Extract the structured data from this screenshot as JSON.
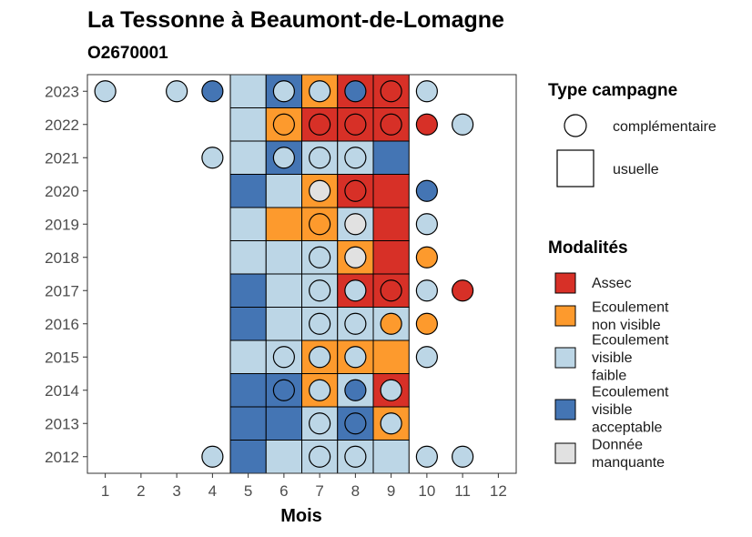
{
  "chart_data": {
    "type": "heatmap",
    "title": "La Tessonne à Beaumont-de-Lomagne",
    "subtitle": "O2670001",
    "xlabel": "Mois",
    "ylabel": "",
    "x_ticks": [
      "1",
      "2",
      "3",
      "4",
      "5",
      "6",
      "7",
      "8",
      "9",
      "10",
      "11",
      "12"
    ],
    "y_ticks": [
      "2012",
      "2013",
      "2014",
      "2015",
      "2016",
      "2017",
      "2018",
      "2019",
      "2020",
      "2021",
      "2022",
      "2023"
    ],
    "colors": {
      "Assec": "#d73027",
      "Ecoulement non visible": "#fd9a2d",
      "Ecoulement visible faible": "#bcd6e6",
      "Ecoulement visible acceptable": "#4475b4",
      "Donnée manquante": "#e1e1e1"
    },
    "usuelle": [
      {
        "year": 2012,
        "month": 5,
        "value": "Ecoulement visible acceptable"
      },
      {
        "year": 2012,
        "month": 6,
        "value": "Ecoulement visible faible"
      },
      {
        "year": 2012,
        "month": 7,
        "value": "Ecoulement visible faible"
      },
      {
        "year": 2012,
        "month": 8,
        "value": "Ecoulement visible faible"
      },
      {
        "year": 2012,
        "month": 9,
        "value": "Ecoulement visible faible"
      },
      {
        "year": 2013,
        "month": 5,
        "value": "Ecoulement visible acceptable"
      },
      {
        "year": 2013,
        "month": 6,
        "value": "Ecoulement visible acceptable"
      },
      {
        "year": 2013,
        "month": 7,
        "value": "Ecoulement visible faible"
      },
      {
        "year": 2013,
        "month": 8,
        "value": "Ecoulement visible acceptable"
      },
      {
        "year": 2013,
        "month": 9,
        "value": "Ecoulement non visible"
      },
      {
        "year": 2014,
        "month": 5,
        "value": "Ecoulement visible acceptable"
      },
      {
        "year": 2014,
        "month": 6,
        "value": "Ecoulement visible acceptable"
      },
      {
        "year": 2014,
        "month": 7,
        "value": "Ecoulement non visible"
      },
      {
        "year": 2014,
        "month": 8,
        "value": "Ecoulement visible faible"
      },
      {
        "year": 2014,
        "month": 9,
        "value": "Assec"
      },
      {
        "year": 2015,
        "month": 5,
        "value": "Ecoulement visible faible"
      },
      {
        "year": 2015,
        "month": 6,
        "value": "Ecoulement visible faible"
      },
      {
        "year": 2015,
        "month": 7,
        "value": "Ecoulement non visible"
      },
      {
        "year": 2015,
        "month": 8,
        "value": "Ecoulement non visible"
      },
      {
        "year": 2015,
        "month": 9,
        "value": "Ecoulement non visible"
      },
      {
        "year": 2016,
        "month": 5,
        "value": "Ecoulement visible acceptable"
      },
      {
        "year": 2016,
        "month": 6,
        "value": "Ecoulement visible faible"
      },
      {
        "year": 2016,
        "month": 7,
        "value": "Ecoulement visible faible"
      },
      {
        "year": 2016,
        "month": 8,
        "value": "Ecoulement visible faible"
      },
      {
        "year": 2016,
        "month": 9,
        "value": "Ecoulement visible faible"
      },
      {
        "year": 2017,
        "month": 5,
        "value": "Ecoulement visible acceptable"
      },
      {
        "year": 2017,
        "month": 6,
        "value": "Ecoulement visible faible"
      },
      {
        "year": 2017,
        "month": 7,
        "value": "Ecoulement visible faible"
      },
      {
        "year": 2017,
        "month": 8,
        "value": "Assec"
      },
      {
        "year": 2017,
        "month": 9,
        "value": "Assec"
      },
      {
        "year": 2018,
        "month": 5,
        "value": "Ecoulement visible faible"
      },
      {
        "year": 2018,
        "month": 6,
        "value": "Ecoulement visible faible"
      },
      {
        "year": 2018,
        "month": 7,
        "value": "Ecoulement visible faible"
      },
      {
        "year": 2018,
        "month": 8,
        "value": "Ecoulement non visible"
      },
      {
        "year": 2018,
        "month": 9,
        "value": "Assec"
      },
      {
        "year": 2019,
        "month": 5,
        "value": "Ecoulement visible faible"
      },
      {
        "year": 2019,
        "month": 6,
        "value": "Ecoulement non visible"
      },
      {
        "year": 2019,
        "month": 7,
        "value": "Ecoulement non visible"
      },
      {
        "year": 2019,
        "month": 8,
        "value": "Ecoulement visible faible"
      },
      {
        "year": 2019,
        "month": 9,
        "value": "Assec"
      },
      {
        "year": 2020,
        "month": 5,
        "value": "Ecoulement visible acceptable"
      },
      {
        "year": 2020,
        "month": 6,
        "value": "Ecoulement visible faible"
      },
      {
        "year": 2020,
        "month": 7,
        "value": "Ecoulement non visible"
      },
      {
        "year": 2020,
        "month": 8,
        "value": "Assec"
      },
      {
        "year": 2020,
        "month": 9,
        "value": "Assec"
      },
      {
        "year": 2021,
        "month": 5,
        "value": "Ecoulement visible faible"
      },
      {
        "year": 2021,
        "month": 6,
        "value": "Ecoulement visible acceptable"
      },
      {
        "year": 2021,
        "month": 7,
        "value": "Ecoulement visible faible"
      },
      {
        "year": 2021,
        "month": 8,
        "value": "Ecoulement visible faible"
      },
      {
        "year": 2021,
        "month": 9,
        "value": "Ecoulement visible acceptable"
      },
      {
        "year": 2022,
        "month": 5,
        "value": "Ecoulement visible faible"
      },
      {
        "year": 2022,
        "month": 6,
        "value": "Ecoulement non visible"
      },
      {
        "year": 2022,
        "month": 7,
        "value": "Assec"
      },
      {
        "year": 2022,
        "month": 8,
        "value": "Assec"
      },
      {
        "year": 2022,
        "month": 9,
        "value": "Assec"
      },
      {
        "year": 2023,
        "month": 5,
        "value": "Ecoulement visible faible"
      },
      {
        "year": 2023,
        "month": 6,
        "value": "Ecoulement visible acceptable"
      },
      {
        "year": 2023,
        "month": 7,
        "value": "Ecoulement non visible"
      },
      {
        "year": 2023,
        "month": 8,
        "value": "Assec"
      },
      {
        "year": 2023,
        "month": 9,
        "value": "Assec"
      }
    ],
    "complementaire": [
      {
        "year": 2012,
        "month": 4,
        "value": "Ecoulement visible faible"
      },
      {
        "year": 2012,
        "month": 7,
        "value": "Ecoulement visible faible"
      },
      {
        "year": 2012,
        "month": 8,
        "value": "Ecoulement visible faible"
      },
      {
        "year": 2012,
        "month": 10,
        "value": "Ecoulement visible faible"
      },
      {
        "year": 2012,
        "month": 11,
        "value": "Ecoulement visible faible"
      },
      {
        "year": 2013,
        "month": 7,
        "value": "Ecoulement visible faible"
      },
      {
        "year": 2013,
        "month": 8,
        "value": "Ecoulement visible acceptable"
      },
      {
        "year": 2013,
        "month": 9,
        "value": "Ecoulement visible faible"
      },
      {
        "year": 2014,
        "month": 6,
        "value": "Ecoulement visible acceptable"
      },
      {
        "year": 2014,
        "month": 7,
        "value": "Ecoulement visible faible"
      },
      {
        "year": 2014,
        "month": 8,
        "value": "Ecoulement visible acceptable"
      },
      {
        "year": 2014,
        "month": 9,
        "value": "Ecoulement visible faible"
      },
      {
        "year": 2015,
        "month": 6,
        "value": "Ecoulement visible faible"
      },
      {
        "year": 2015,
        "month": 7,
        "value": "Ecoulement visible faible"
      },
      {
        "year": 2015,
        "month": 8,
        "value": "Ecoulement visible faible"
      },
      {
        "year": 2015,
        "month": 10,
        "value": "Ecoulement visible faible"
      },
      {
        "year": 2016,
        "month": 7,
        "value": "Ecoulement visible faible"
      },
      {
        "year": 2016,
        "month": 8,
        "value": "Ecoulement visible faible"
      },
      {
        "year": 2016,
        "month": 9,
        "value": "Ecoulement non visible"
      },
      {
        "year": 2016,
        "month": 10,
        "value": "Ecoulement non visible"
      },
      {
        "year": 2017,
        "month": 7,
        "value": "Ecoulement visible faible"
      },
      {
        "year": 2017,
        "month": 8,
        "value": "Ecoulement visible faible"
      },
      {
        "year": 2017,
        "month": 9,
        "value": "Assec"
      },
      {
        "year": 2017,
        "month": 10,
        "value": "Ecoulement visible faible"
      },
      {
        "year": 2017,
        "month": 11,
        "value": "Assec"
      },
      {
        "year": 2018,
        "month": 7,
        "value": "Ecoulement visible faible"
      },
      {
        "year": 2018,
        "month": 8,
        "value": "Donnée manquante"
      },
      {
        "year": 2018,
        "month": 10,
        "value": "Ecoulement non visible"
      },
      {
        "year": 2019,
        "month": 7,
        "value": "Ecoulement non visible"
      },
      {
        "year": 2019,
        "month": 8,
        "value": "Donnée manquante"
      },
      {
        "year": 2019,
        "month": 10,
        "value": "Ecoulement visible faible"
      },
      {
        "year": 2020,
        "month": 7,
        "value": "Donnée manquante"
      },
      {
        "year": 2020,
        "month": 8,
        "value": "Assec"
      },
      {
        "year": 2020,
        "month": 10,
        "value": "Ecoulement visible acceptable"
      },
      {
        "year": 2021,
        "month": 4,
        "value": "Ecoulement visible faible"
      },
      {
        "year": 2021,
        "month": 6,
        "value": "Ecoulement visible faible"
      },
      {
        "year": 2021,
        "month": 7,
        "value": "Ecoulement visible faible"
      },
      {
        "year": 2021,
        "month": 8,
        "value": "Ecoulement visible faible"
      },
      {
        "year": 2022,
        "month": 6,
        "value": "Ecoulement non visible"
      },
      {
        "year": 2022,
        "month": 7,
        "value": "Assec"
      },
      {
        "year": 2022,
        "month": 8,
        "value": "Assec"
      },
      {
        "year": 2022,
        "month": 9,
        "value": "Assec"
      },
      {
        "year": 2022,
        "month": 10,
        "value": "Assec"
      },
      {
        "year": 2022,
        "month": 11,
        "value": "Ecoulement visible faible"
      },
      {
        "year": 2023,
        "month": 1,
        "value": "Ecoulement visible faible"
      },
      {
        "year": 2023,
        "month": 3,
        "value": "Ecoulement visible faible"
      },
      {
        "year": 2023,
        "month": 4,
        "value": "Ecoulement visible acceptable"
      },
      {
        "year": 2023,
        "month": 6,
        "value": "Ecoulement visible faible"
      },
      {
        "year": 2023,
        "month": 7,
        "value": "Ecoulement visible faible"
      },
      {
        "year": 2023,
        "month": 8,
        "value": "Ecoulement visible acceptable"
      },
      {
        "year": 2023,
        "month": 9,
        "value": "Assec"
      },
      {
        "year": 2023,
        "month": 10,
        "value": "Ecoulement visible faible"
      }
    ]
  },
  "legend": {
    "type_title": "Type campagne",
    "type_items": [
      {
        "label": "complémentaire",
        "shape": "circle"
      },
      {
        "label": "usuelle",
        "shape": "square"
      }
    ],
    "modal_title": "Modalités",
    "modal_items": [
      {
        "key": "Assec",
        "lines": [
          "Assec"
        ]
      },
      {
        "key": "Ecoulement non visible",
        "lines": [
          "Ecoulement",
          "non visible"
        ]
      },
      {
        "key": "Ecoulement visible faible",
        "lines": [
          "Ecoulement",
          "visible",
          "faible"
        ]
      },
      {
        "key": "Ecoulement visible acceptable",
        "lines": [
          "Ecoulement",
          "visible",
          "acceptable"
        ]
      },
      {
        "key": "Donnée manquante",
        "lines": [
          "Donnée",
          "manquante"
        ]
      }
    ]
  }
}
